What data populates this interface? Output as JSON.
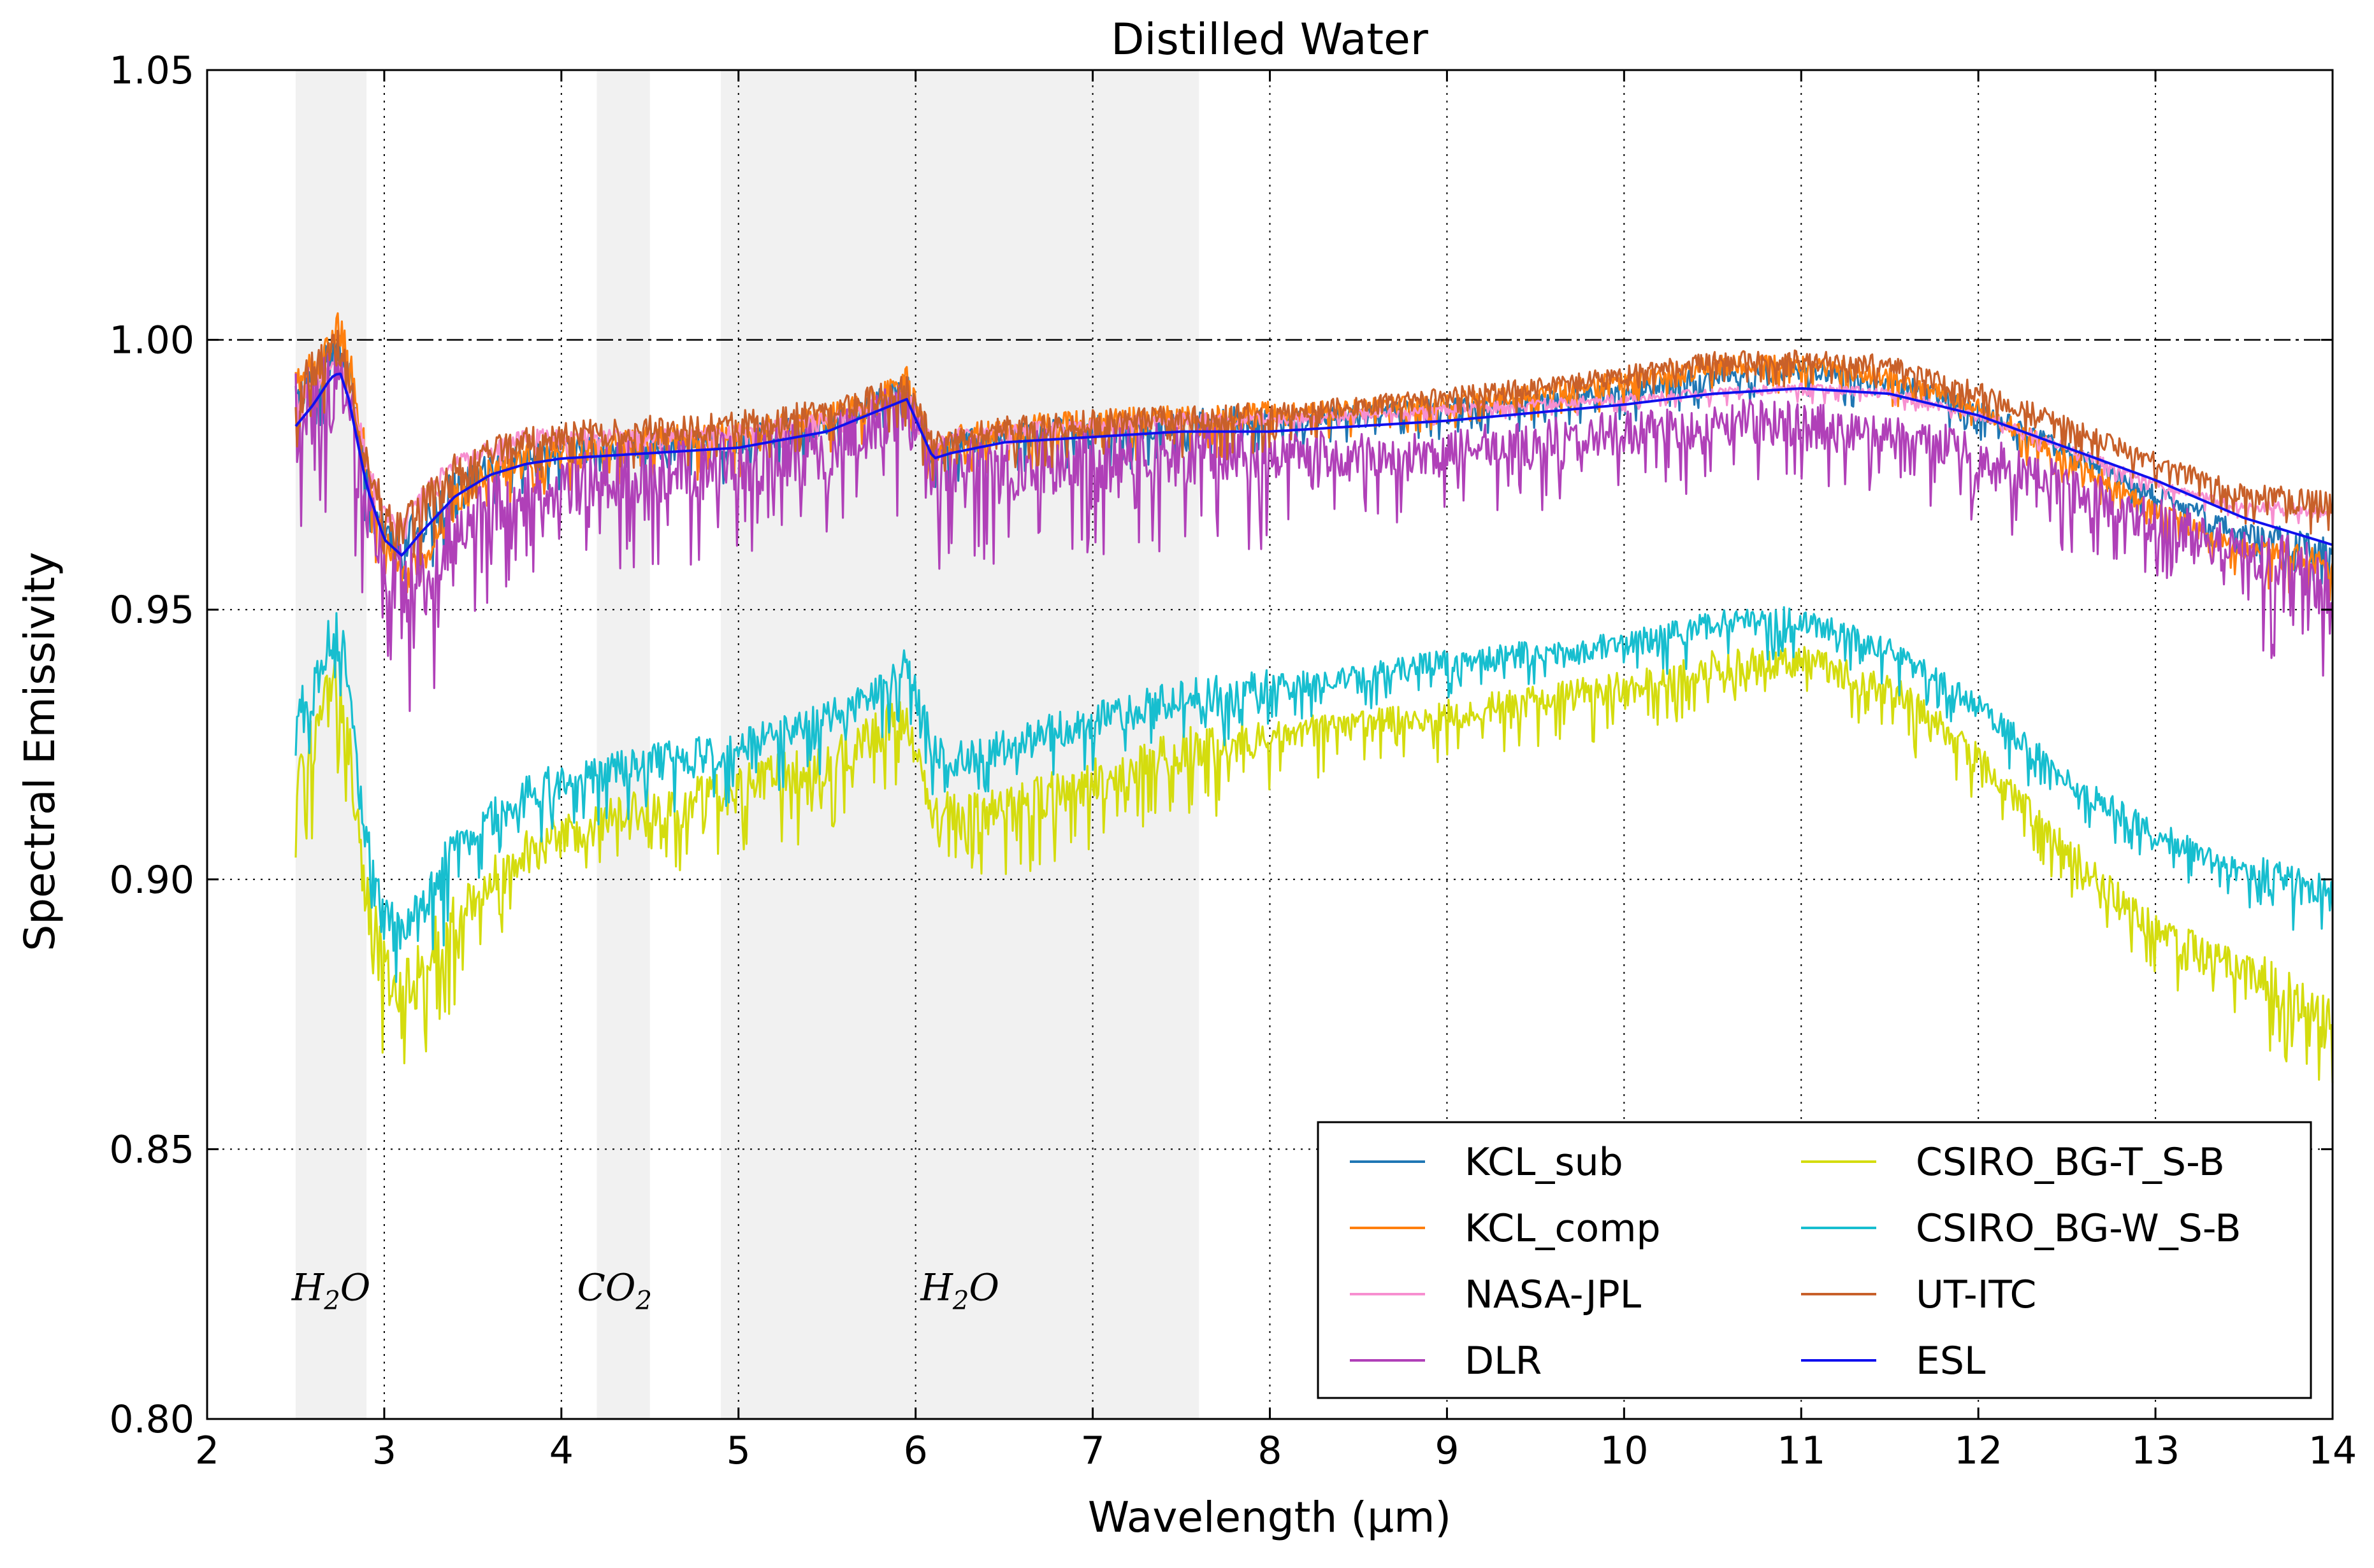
{
  "chart_data": {
    "type": "line",
    "title": "Distilled Water",
    "xlabel": "Wavelength (μm)",
    "ylabel": "Spectral Emissivity",
    "xlim": [
      2,
      14
    ],
    "ylim": [
      0.8,
      1.05
    ],
    "xticks": [
      "2",
      "3",
      "4",
      "5",
      "6",
      "7",
      "8",
      "9",
      "10",
      "11",
      "12",
      "13",
      "14"
    ],
    "yticks": [
      "0.80",
      "0.85",
      "0.90",
      "0.95",
      "1.00",
      "1.05"
    ],
    "grid": true,
    "reference_line": 1.0,
    "legend_position": "lower-right",
    "absorption_bands": [
      {
        "range": [
          2.5,
          2.9
        ],
        "label": "H",
        "sub": "2",
        "suffix": "O",
        "label_x": 2.7
      },
      {
        "range": [
          4.2,
          4.5
        ],
        "label": "CO",
        "sub": "2",
        "suffix": "",
        "label_x": 4.3
      },
      {
        "range": [
          4.9,
          7.6
        ],
        "label": "H",
        "sub": "2",
        "suffix": "O",
        "label_x": 6.25
      }
    ],
    "series": [
      {
        "name": "KCL_sub",
        "color": "#1f77b4",
        "noise": 0.003,
        "x": [
          2.5,
          2.6,
          2.7,
          2.75,
          2.8,
          2.9,
          3.0,
          3.1,
          3.2,
          3.4,
          3.6,
          3.8,
          4.0,
          4.5,
          5.0,
          5.5,
          5.8,
          5.95,
          6.1,
          6.2,
          6.5,
          7.0,
          7.5,
          8.0,
          9.0,
          10.0,
          10.5,
          11.0,
          11.5,
          12.0,
          12.5,
          13.0,
          13.5,
          14.0
        ],
        "y": [
          0.989,
          0.992,
          0.996,
          0.997,
          0.993,
          0.975,
          0.965,
          0.962,
          0.965,
          0.972,
          0.976,
          0.978,
          0.979,
          0.98,
          0.981,
          0.984,
          0.988,
          0.991,
          0.978,
          0.98,
          0.982,
          0.983,
          0.984,
          0.985,
          0.987,
          0.99,
          0.993,
          0.994,
          0.992,
          0.987,
          0.979,
          0.971,
          0.964,
          0.96
        ]
      },
      {
        "name": "KCL_comp",
        "color": "#ff7f0e",
        "noise": 0.003,
        "x": [
          2.5,
          2.6,
          2.7,
          2.75,
          2.8,
          2.9,
          3.0,
          3.1,
          3.2,
          3.4,
          3.6,
          3.8,
          4.0,
          4.5,
          5.0,
          5.5,
          5.8,
          5.95,
          6.1,
          6.2,
          6.5,
          7.0,
          7.5,
          8.0,
          9.0,
          10.0,
          10.5,
          11.0,
          11.5,
          12.0,
          12.5,
          13.0,
          13.5,
          14.0
        ],
        "y": [
          0.991,
          0.995,
          1.0,
          1.002,
          0.996,
          0.977,
          0.962,
          0.955,
          0.958,
          0.97,
          0.975,
          0.978,
          0.979,
          0.981,
          0.982,
          0.985,
          0.989,
          0.992,
          0.979,
          0.981,
          0.983,
          0.984,
          0.985,
          0.986,
          0.988,
          0.992,
          0.995,
          0.995,
          0.993,
          0.987,
          0.978,
          0.968,
          0.961,
          0.958
        ]
      },
      {
        "name": "NASA-JPL",
        "color": "#f78fd0",
        "noise": 0.0015,
        "x": [
          2.5,
          2.6,
          2.7,
          2.75,
          2.8,
          2.9,
          3.0,
          3.1,
          3.2,
          3.4,
          3.6,
          3.8,
          4.0,
          4.5,
          5.0,
          5.5,
          5.8,
          5.95,
          6.1,
          6.2,
          6.5,
          7.0,
          7.5,
          8.0,
          9.0,
          10.0,
          10.5,
          11.0,
          11.5,
          12.0,
          12.5,
          13.0,
          13.5,
          14.0
        ],
        "y": [
          0.988,
          0.991,
          0.994,
          0.995,
          0.992,
          0.978,
          0.968,
          0.966,
          0.97,
          0.977,
          0.98,
          0.982,
          0.982,
          0.982,
          0.983,
          0.985,
          0.988,
          0.99,
          0.98,
          0.982,
          0.983,
          0.984,
          0.985,
          0.985,
          0.987,
          0.989,
          0.99,
          0.991,
          0.99,
          0.986,
          0.98,
          0.973,
          0.969,
          0.968
        ]
      },
      {
        "name": "DLR",
        "color": "#b040b8",
        "noise": 0.007,
        "x": [
          2.5,
          2.6,
          2.7,
          2.75,
          2.8,
          2.9,
          3.0,
          3.1,
          3.2,
          3.4,
          3.6,
          3.8,
          4.0,
          4.5,
          5.0,
          5.5,
          5.8,
          5.95,
          6.1,
          6.2,
          6.5,
          7.0,
          7.5,
          8.0,
          9.0,
          10.0,
          10.5,
          11.0,
          11.5,
          12.0,
          12.5,
          13.0,
          13.5,
          14.0
        ],
        "y": [
          0.984,
          0.986,
          0.99,
          0.991,
          0.985,
          0.968,
          0.957,
          0.952,
          0.955,
          0.962,
          0.968,
          0.971,
          0.972,
          0.975,
          0.976,
          0.979,
          0.984,
          0.986,
          0.974,
          0.976,
          0.976,
          0.977,
          0.978,
          0.978,
          0.979,
          0.982,
          0.984,
          0.984,
          0.982,
          0.978,
          0.972,
          0.966,
          0.96,
          0.954
        ]
      },
      {
        "name": "CSIRO_BG-T_S-B",
        "color": "#d4dc0e",
        "noise": 0.005,
        "x": [
          2.5,
          2.6,
          2.7,
          2.75,
          2.8,
          2.9,
          3.0,
          3.1,
          3.2,
          3.4,
          3.6,
          3.8,
          4.0,
          4.5,
          5.0,
          5.5,
          5.8,
          5.95,
          6.1,
          6.2,
          6.5,
          7.0,
          7.5,
          8.0,
          9.0,
          10.0,
          10.5,
          11.0,
          11.5,
          12.0,
          12.5,
          13.0,
          13.5,
          14.0
        ],
        "y": [
          0.915,
          0.925,
          0.935,
          0.936,
          0.925,
          0.895,
          0.882,
          0.878,
          0.882,
          0.893,
          0.899,
          0.904,
          0.908,
          0.912,
          0.916,
          0.921,
          0.927,
          0.93,
          0.912,
          0.911,
          0.912,
          0.918,
          0.923,
          0.926,
          0.93,
          0.935,
          0.939,
          0.94,
          0.935,
          0.922,
          0.905,
          0.89,
          0.883,
          0.873
        ]
      },
      {
        "name": "CSIRO_BG-W_S-B",
        "color": "#17becf",
        "noise": 0.004,
        "x": [
          2.5,
          2.6,
          2.7,
          2.75,
          2.8,
          2.9,
          3.0,
          3.1,
          3.2,
          3.4,
          3.6,
          3.8,
          4.0,
          4.5,
          5.0,
          5.5,
          5.8,
          5.95,
          6.1,
          6.2,
          6.5,
          7.0,
          7.5,
          8.0,
          9.0,
          10.0,
          10.5,
          11.0,
          11.5,
          12.0,
          12.5,
          13.0,
          13.5,
          14.0
        ],
        "y": [
          0.927,
          0.936,
          0.944,
          0.945,
          0.935,
          0.905,
          0.892,
          0.888,
          0.893,
          0.905,
          0.911,
          0.915,
          0.918,
          0.921,
          0.924,
          0.929,
          0.935,
          0.939,
          0.924,
          0.922,
          0.924,
          0.929,
          0.933,
          0.935,
          0.94,
          0.943,
          0.947,
          0.948,
          0.942,
          0.932,
          0.918,
          0.908,
          0.901,
          0.897
        ]
      },
      {
        "name": "UT-ITC",
        "color": "#c8602a",
        "noise": 0.003,
        "x": [
          2.5,
          2.6,
          2.7,
          2.75,
          2.8,
          2.9,
          3.0,
          3.1,
          3.2,
          3.4,
          3.6,
          3.8,
          4.0,
          4.5,
          5.0,
          5.5,
          5.8,
          5.95,
          6.1,
          6.2,
          6.5,
          7.0,
          7.5,
          8.0,
          9.0,
          10.0,
          10.5,
          11.0,
          11.5,
          12.0,
          12.5,
          13.0,
          13.5,
          14.0
        ],
        "y": [
          0.99,
          0.994,
          0.997,
          0.998,
          0.994,
          0.978,
          0.968,
          0.964,
          0.968,
          0.975,
          0.979,
          0.981,
          0.982,
          0.983,
          0.984,
          0.986,
          0.989,
          0.991,
          0.98,
          0.981,
          0.983,
          0.984,
          0.985,
          0.986,
          0.989,
          0.993,
          0.996,
          0.996,
          0.995,
          0.99,
          0.984,
          0.977,
          0.971,
          0.969
        ]
      },
      {
        "name": "ESL",
        "color": "#1010ee",
        "noise": 0.0,
        "x": [
          2.5,
          2.6,
          2.7,
          2.75,
          2.8,
          2.9,
          3.0,
          3.1,
          3.2,
          3.4,
          3.6,
          3.8,
          4.0,
          4.5,
          5.0,
          5.5,
          5.8,
          5.95,
          6.1,
          6.2,
          6.5,
          7.0,
          7.5,
          8.0,
          9.0,
          10.0,
          10.5,
          11.0,
          11.5,
          12.0,
          12.5,
          13.0,
          13.5,
          14.0
        ],
        "y": [
          0.984,
          0.988,
          0.993,
          0.994,
          0.989,
          0.973,
          0.963,
          0.96,
          0.964,
          0.971,
          0.975,
          0.977,
          0.978,
          0.979,
          0.98,
          0.983,
          0.987,
          0.989,
          0.978,
          0.979,
          0.981,
          0.982,
          0.983,
          0.983,
          0.985,
          0.988,
          0.99,
          0.991,
          0.99,
          0.986,
          0.98,
          0.974,
          0.967,
          0.962
        ]
      }
    ]
  }
}
